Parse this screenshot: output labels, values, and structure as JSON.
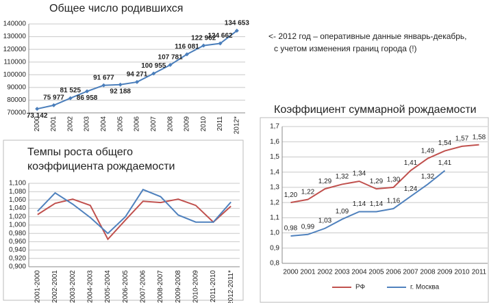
{
  "annotation": [
    "<- 2012 год – оперативные данные январь-декабрь,",
    "с учетом изменения границ города (!)"
  ],
  "chart_data": [
    {
      "type": "line",
      "title": "Общее число родившихся",
      "markers": true,
      "grid": true,
      "categories": [
        "2000",
        "2001",
        "2002",
        "2003",
        "2004",
        "2005",
        "2006",
        "2007",
        "2008",
        "2009",
        "2010",
        "2011",
        "2012*"
      ],
      "series": [
        {
          "color": "#4a7ebb",
          "values": [
            73142,
            75977,
            81525,
            86958,
            91677,
            92188,
            94271,
            100955,
            107781,
            116081,
            122962,
            124662,
            134653
          ],
          "value_labels": [
            "73 142",
            "75 977",
            "81 525",
            "86 958",
            "91 677",
            "92 188",
            "94 271",
            "100 955",
            "107 781",
            "116 081",
            "122 962",
            "124 662",
            "134 653"
          ]
        }
      ],
      "ylim": [
        70000,
        140000
      ],
      "yticks": [
        70000,
        80000,
        90000,
        100000,
        110000,
        120000,
        130000,
        140000
      ]
    },
    {
      "type": "line",
      "title": "Темпы роста общего коэффициента рождаемости",
      "grid": true,
      "categories": [
        "2001-2000",
        "2002-2001",
        "2003-2002",
        "2004-2003",
        "2005-2004",
        "2006-2005",
        "2007-2006",
        "2008-2007",
        "2009-2008",
        "2010-2009",
        "2011-2010",
        "2012-2011*"
      ],
      "series": [
        {
          "color": "#c0504d",
          "values": [
            1.025,
            1.052,
            1.062,
            1.047,
            0.966,
            1.012,
            1.057,
            1.054,
            1.062,
            1.047,
            1.007,
            1.045
          ]
        },
        {
          "color": "#4f81bd",
          "values": [
            1.033,
            1.077,
            1.05,
            1.018,
            0.98,
            1.02,
            1.085,
            1.068,
            1.024,
            1.007,
            1.007,
            1.055
          ]
        }
      ],
      "ylim": [
        0.9,
        1.1
      ],
      "yticks": [
        {
          "value": 0.9,
          "label": "0,900"
        },
        {
          "value": 0.92,
          "label": "0,920"
        },
        {
          "value": 0.94,
          "label": "0,940"
        },
        {
          "value": 0.96,
          "label": "0,960"
        },
        {
          "value": 0.98,
          "label": "0,980"
        },
        {
          "value": 1.0,
          "label": "1,000"
        },
        {
          "value": 1.02,
          "label": "1,020"
        },
        {
          "value": 1.04,
          "label": "1,040"
        },
        {
          "value": 1.06,
          "label": "1,060"
        },
        {
          "value": 1.08,
          "label": "1,080"
        },
        {
          "value": 1.1,
          "label": "1,100"
        }
      ]
    },
    {
      "type": "line",
      "title": "Коэффициент суммарной рождаемости",
      "grid": true,
      "legend": "bottom",
      "categories": [
        "2000",
        "2001",
        "2002",
        "2003",
        "2004",
        "2005",
        "2006",
        "2007",
        "2008",
        "2009",
        "2010",
        "2011"
      ],
      "series": [
        {
          "name": "РФ",
          "color": "#c0504d",
          "values": [
            1.2,
            1.22,
            1.29,
            1.32,
            1.34,
            1.29,
            1.3,
            1.41,
            1.49,
            1.54,
            1.57,
            1.58
          ],
          "value_labels": [
            "1,20",
            "1,22",
            "1,29",
            "1,32",
            "1,34",
            "1,29",
            "1,30",
            "1,41",
            "1,49",
            "1,54",
            "1,57",
            "1,58"
          ]
        },
        {
          "name": "г. Москва",
          "color": "#4f81bd",
          "values": [
            0.98,
            0.99,
            1.03,
            1.09,
            1.14,
            1.14,
            1.16,
            1.24,
            1.32,
            1.41,
            null,
            null
          ],
          "value_labels": [
            "0,98",
            "0,99",
            "1,03",
            "1,09",
            "1,14",
            "1,14",
            "1,16",
            "1,24",
            "1,32",
            "1,41",
            null,
            null
          ]
        }
      ],
      "ylim": [
        0.8,
        1.7
      ],
      "yticks": [
        {
          "value": 0.8,
          "label": "0,8"
        },
        {
          "value": 0.9,
          "label": "0,9"
        },
        {
          "value": 1.0,
          "label": "1,0"
        },
        {
          "value": 1.1,
          "label": "1,1"
        },
        {
          "value": 1.2,
          "label": "1,2"
        },
        {
          "value": 1.3,
          "label": "1,3"
        },
        {
          "value": 1.4,
          "label": "1,4"
        },
        {
          "value": 1.5,
          "label": "1,5"
        },
        {
          "value": 1.6,
          "label": "1,6"
        },
        {
          "value": 1.7,
          "label": "1,7"
        }
      ]
    }
  ]
}
